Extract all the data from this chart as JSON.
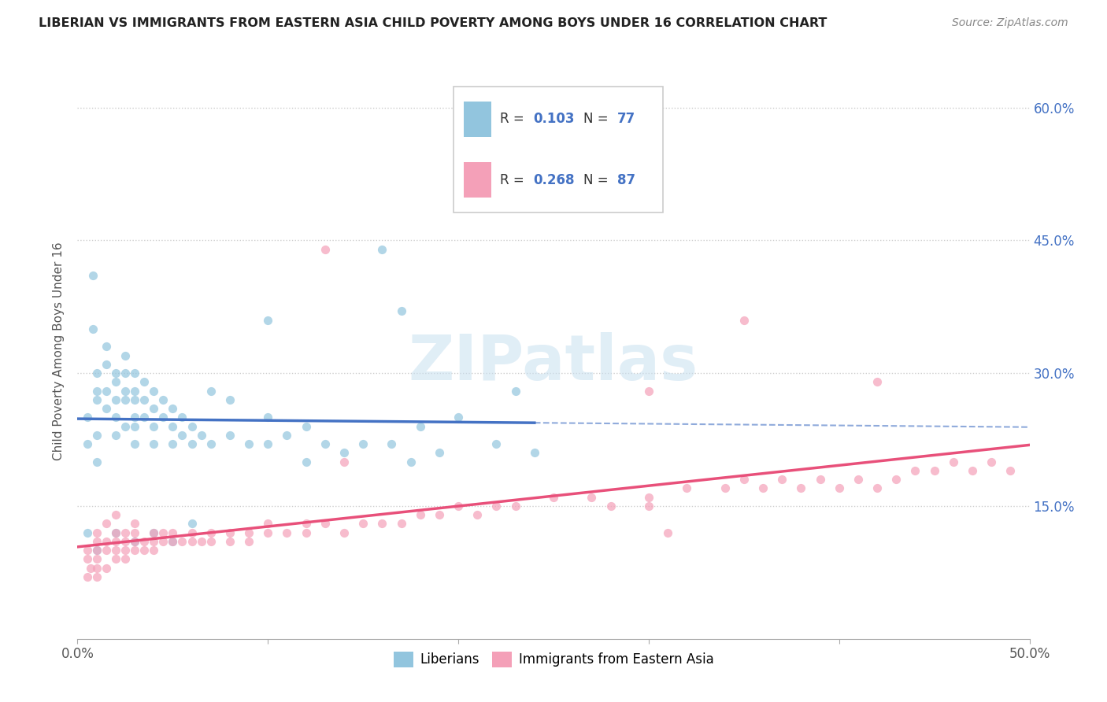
{
  "title": "LIBERIAN VS IMMIGRANTS FROM EASTERN ASIA CHILD POVERTY AMONG BOYS UNDER 16 CORRELATION CHART",
  "source": "Source: ZipAtlas.com",
  "ylabel": "Child Poverty Among Boys Under 16",
  "yticks": [
    "15.0%",
    "30.0%",
    "45.0%",
    "60.0%"
  ],
  "ytick_vals": [
    0.15,
    0.3,
    0.45,
    0.6
  ],
  "xlim": [
    0.0,
    0.5
  ],
  "ylim": [
    0.0,
    0.65
  ],
  "watermark": "ZIPatlas",
  "color_liberian": "#92C5DE",
  "color_immigrant": "#F4A0B8",
  "color_text_blue": "#4472C4",
  "trendline_color_liberian": "#4472C4",
  "trendline_color_immigrant": "#E8507A",
  "lib_x": [
    0.005,
    0.005,
    0.008,
    0.008,
    0.01,
    0.01,
    0.01,
    0.01,
    0.01,
    0.015,
    0.015,
    0.015,
    0.015,
    0.02,
    0.02,
    0.02,
    0.02,
    0.02,
    0.025,
    0.025,
    0.025,
    0.025,
    0.025,
    0.03,
    0.03,
    0.03,
    0.03,
    0.03,
    0.03,
    0.035,
    0.035,
    0.035,
    0.04,
    0.04,
    0.04,
    0.04,
    0.045,
    0.045,
    0.05,
    0.05,
    0.05,
    0.055,
    0.055,
    0.06,
    0.06,
    0.065,
    0.07,
    0.07,
    0.08,
    0.08,
    0.09,
    0.1,
    0.1,
    0.1,
    0.11,
    0.12,
    0.12,
    0.13,
    0.14,
    0.15,
    0.16,
    0.165,
    0.17,
    0.175,
    0.18,
    0.19,
    0.2,
    0.22,
    0.23,
    0.24,
    0.005,
    0.01,
    0.02,
    0.03,
    0.04,
    0.05,
    0.06
  ],
  "lib_y": [
    0.25,
    0.22,
    0.41,
    0.35,
    0.3,
    0.28,
    0.27,
    0.23,
    0.2,
    0.33,
    0.31,
    0.28,
    0.26,
    0.3,
    0.29,
    0.27,
    0.25,
    0.23,
    0.32,
    0.3,
    0.28,
    0.27,
    0.24,
    0.3,
    0.28,
    0.27,
    0.25,
    0.24,
    0.22,
    0.29,
    0.27,
    0.25,
    0.28,
    0.26,
    0.24,
    0.22,
    0.27,
    0.25,
    0.26,
    0.24,
    0.22,
    0.25,
    0.23,
    0.24,
    0.22,
    0.23,
    0.28,
    0.22,
    0.27,
    0.23,
    0.22,
    0.36,
    0.25,
    0.22,
    0.23,
    0.24,
    0.2,
    0.22,
    0.21,
    0.22,
    0.44,
    0.22,
    0.37,
    0.2,
    0.24,
    0.21,
    0.25,
    0.22,
    0.28,
    0.21,
    0.12,
    0.1,
    0.12,
    0.11,
    0.12,
    0.11,
    0.13
  ],
  "imm_x": [
    0.005,
    0.005,
    0.005,
    0.007,
    0.01,
    0.01,
    0.01,
    0.01,
    0.01,
    0.01,
    0.015,
    0.015,
    0.015,
    0.015,
    0.02,
    0.02,
    0.02,
    0.02,
    0.02,
    0.025,
    0.025,
    0.025,
    0.025,
    0.03,
    0.03,
    0.03,
    0.03,
    0.035,
    0.035,
    0.04,
    0.04,
    0.04,
    0.045,
    0.045,
    0.05,
    0.05,
    0.055,
    0.06,
    0.06,
    0.065,
    0.07,
    0.07,
    0.08,
    0.08,
    0.09,
    0.09,
    0.1,
    0.1,
    0.11,
    0.12,
    0.12,
    0.13,
    0.14,
    0.15,
    0.16,
    0.17,
    0.18,
    0.19,
    0.2,
    0.21,
    0.22,
    0.23,
    0.25,
    0.27,
    0.28,
    0.3,
    0.32,
    0.34,
    0.35,
    0.36,
    0.37,
    0.38,
    0.39,
    0.4,
    0.41,
    0.42,
    0.43,
    0.44,
    0.45,
    0.46,
    0.47,
    0.48,
    0.49,
    0.13,
    0.14,
    0.3,
    0.35,
    0.3,
    0.31,
    0.42
  ],
  "imm_y": [
    0.1,
    0.09,
    0.07,
    0.08,
    0.12,
    0.11,
    0.1,
    0.09,
    0.08,
    0.07,
    0.13,
    0.11,
    0.1,
    0.08,
    0.14,
    0.12,
    0.11,
    0.1,
    0.09,
    0.12,
    0.11,
    0.1,
    0.09,
    0.13,
    0.12,
    0.11,
    0.1,
    0.11,
    0.1,
    0.12,
    0.11,
    0.1,
    0.12,
    0.11,
    0.12,
    0.11,
    0.11,
    0.12,
    0.11,
    0.11,
    0.12,
    0.11,
    0.12,
    0.11,
    0.12,
    0.11,
    0.13,
    0.12,
    0.12,
    0.13,
    0.12,
    0.13,
    0.12,
    0.13,
    0.13,
    0.13,
    0.14,
    0.14,
    0.15,
    0.14,
    0.15,
    0.15,
    0.16,
    0.16,
    0.15,
    0.16,
    0.17,
    0.17,
    0.18,
    0.17,
    0.18,
    0.17,
    0.18,
    0.17,
    0.18,
    0.17,
    0.18,
    0.19,
    0.19,
    0.2,
    0.19,
    0.2,
    0.19,
    0.44,
    0.2,
    0.28,
    0.36,
    0.15,
    0.12,
    0.29
  ]
}
